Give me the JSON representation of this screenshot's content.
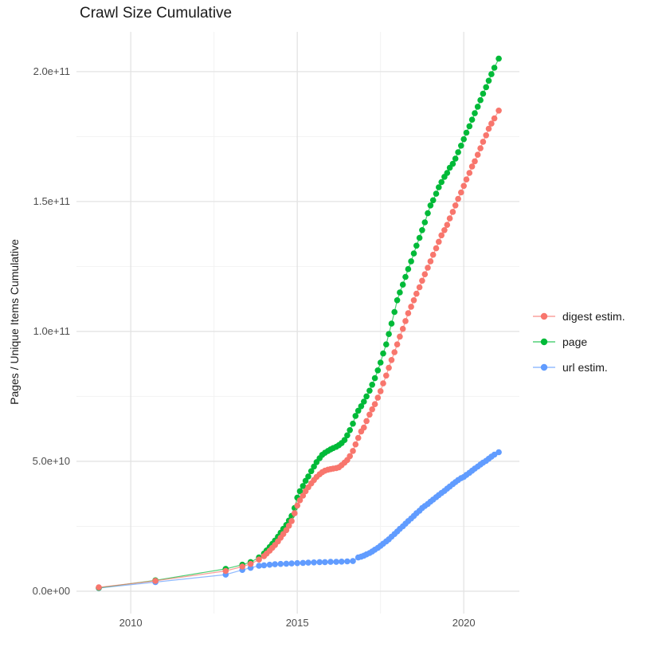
{
  "title": "Crawl Size Cumulative",
  "y_axis": {
    "label": "Pages / Unique Items Cumulative",
    "ticks": [
      "0.0e+00",
      "5.0e+10",
      "1.0e+11",
      "1.5e+11",
      "2.0e+11"
    ]
  },
  "x_axis": {
    "ticks": [
      "2010",
      "2015",
      "2020"
    ]
  },
  "legend": {
    "items": [
      {
        "label": "digest estim.",
        "color": "#F8766D"
      },
      {
        "label": "page",
        "color": "#00BA38"
      },
      {
        "label": "url estim.",
        "color": "#619CFF"
      }
    ]
  },
  "chart_data": {
    "type": "scatter",
    "title": "Crawl Size Cumulative",
    "xlabel": "",
    "ylabel": "Pages / Unique Items Cumulative",
    "note": "y values stored in billions (1e9); axis shows 0.0e+00 to 2.0e+11",
    "x_range": [
      2008.37,
      2021.67
    ],
    "y_range_e9": [
      -8.6,
      215.3
    ],
    "x_major_gridlines": [
      2010,
      2015,
      2020
    ],
    "x_minor_gridlines": [
      2012.5,
      2017.5
    ],
    "y_major_gridlines_e9": [
      0,
      50,
      100,
      150,
      200
    ],
    "y_minor_gridlines_e9": [
      25,
      75,
      125,
      175
    ],
    "y_tick_values_e9": [
      0,
      50,
      100,
      150,
      200
    ],
    "x_tick_values": [
      2010,
      2015,
      2020
    ],
    "legend_position": "right",
    "grid": true,
    "draw_order": [
      "url estim.",
      "page",
      "digest estim."
    ],
    "series": [
      {
        "name": "digest estim.",
        "color": "#F8766D",
        "points": [
          [
            2009.04,
            1.5
          ],
          [
            2010.74,
            4.0
          ],
          [
            2012.85,
            7.8
          ],
          [
            2013.35,
            9.5
          ],
          [
            2013.6,
            10.5
          ],
          [
            2013.85,
            12.2
          ],
          [
            2014.0,
            13.5
          ],
          [
            2014.08,
            14.5
          ],
          [
            2014.17,
            15.6
          ],
          [
            2014.25,
            16.7
          ],
          [
            2014.33,
            17.8
          ],
          [
            2014.42,
            19.2
          ],
          [
            2014.5,
            20.6
          ],
          [
            2014.58,
            22.0
          ],
          [
            2014.67,
            23.5
          ],
          [
            2014.75,
            25.2
          ],
          [
            2014.83,
            27.0
          ],
          [
            2014.92,
            30.0
          ],
          [
            2015.0,
            33.0
          ],
          [
            2015.08,
            35.0
          ],
          [
            2015.17,
            36.8
          ],
          [
            2015.25,
            38.5
          ],
          [
            2015.33,
            40.0
          ],
          [
            2015.42,
            41.5
          ],
          [
            2015.5,
            42.8
          ],
          [
            2015.58,
            44.0
          ],
          [
            2015.67,
            45.0
          ],
          [
            2015.75,
            45.8
          ],
          [
            2015.83,
            46.4
          ],
          [
            2015.92,
            46.8
          ],
          [
            2016.0,
            47.0
          ],
          [
            2016.08,
            47.2
          ],
          [
            2016.17,
            47.4
          ],
          [
            2016.25,
            47.7
          ],
          [
            2016.33,
            48.5
          ],
          [
            2016.42,
            49.5
          ],
          [
            2016.5,
            50.5
          ],
          [
            2016.58,
            52.0
          ],
          [
            2016.67,
            54.0
          ],
          [
            2016.75,
            56.5
          ],
          [
            2016.83,
            59.0
          ],
          [
            2016.92,
            61.5
          ],
          [
            2017.0,
            63.0
          ],
          [
            2017.08,
            65.5
          ],
          [
            2017.17,
            68.0
          ],
          [
            2017.25,
            70.0
          ],
          [
            2017.33,
            72.0
          ],
          [
            2017.42,
            74.5
          ],
          [
            2017.5,
            77.0
          ],
          [
            2017.58,
            80.0
          ],
          [
            2017.67,
            83.0
          ],
          [
            2017.75,
            86.0
          ],
          [
            2017.83,
            89.0
          ],
          [
            2017.92,
            92.0
          ],
          [
            2018.0,
            95.0
          ],
          [
            2018.08,
            98.0
          ],
          [
            2018.17,
            101.0
          ],
          [
            2018.25,
            104.0
          ],
          [
            2018.33,
            107.0
          ],
          [
            2018.42,
            109.5
          ],
          [
            2018.5,
            112.0
          ],
          [
            2018.58,
            114.5
          ],
          [
            2018.67,
            117.0
          ],
          [
            2018.75,
            119.5
          ],
          [
            2018.83,
            122.0
          ],
          [
            2018.92,
            124.5
          ],
          [
            2019.0,
            127.0
          ],
          [
            2019.08,
            129.5
          ],
          [
            2019.17,
            132.0
          ],
          [
            2019.25,
            134.5
          ],
          [
            2019.33,
            137.0
          ],
          [
            2019.42,
            139.0
          ],
          [
            2019.5,
            141.0
          ],
          [
            2019.58,
            143.5
          ],
          [
            2019.67,
            146.0
          ],
          [
            2019.75,
            148.5
          ],
          [
            2019.83,
            151.0
          ],
          [
            2019.92,
            153.5
          ],
          [
            2020.0,
            156.0
          ],
          [
            2020.08,
            158.5
          ],
          [
            2020.17,
            161.0
          ],
          [
            2020.25,
            163.5
          ],
          [
            2020.33,
            165.5
          ],
          [
            2020.42,
            168.0
          ],
          [
            2020.5,
            170.5
          ],
          [
            2020.58,
            173.0
          ],
          [
            2020.67,
            175.5
          ],
          [
            2020.75,
            178.0
          ],
          [
            2020.83,
            180.0
          ],
          [
            2020.92,
            182.0
          ],
          [
            2021.05,
            185.0
          ]
        ]
      },
      {
        "name": "page",
        "color": "#00BA38",
        "points": [
          [
            2009.04,
            1.3
          ],
          [
            2010.74,
            4.2
          ],
          [
            2012.85,
            8.6
          ],
          [
            2013.35,
            10.2
          ],
          [
            2013.6,
            11.2
          ],
          [
            2013.85,
            13.0
          ],
          [
            2014.0,
            14.5
          ],
          [
            2014.08,
            15.7
          ],
          [
            2014.17,
            17.0
          ],
          [
            2014.25,
            18.2
          ],
          [
            2014.33,
            19.5
          ],
          [
            2014.42,
            21.0
          ],
          [
            2014.5,
            22.5
          ],
          [
            2014.58,
            24.0
          ],
          [
            2014.67,
            25.5
          ],
          [
            2014.75,
            27.2
          ],
          [
            2014.83,
            29.0
          ],
          [
            2014.92,
            32.0
          ],
          [
            2015.0,
            36.0
          ],
          [
            2015.08,
            38.5
          ],
          [
            2015.17,
            40.5
          ],
          [
            2015.25,
            42.5
          ],
          [
            2015.33,
            44.2
          ],
          [
            2015.42,
            46.2
          ],
          [
            2015.5,
            48.0
          ],
          [
            2015.58,
            49.7
          ],
          [
            2015.67,
            51.2
          ],
          [
            2015.75,
            52.5
          ],
          [
            2015.83,
            53.3
          ],
          [
            2015.92,
            54.0
          ],
          [
            2016.0,
            54.6
          ],
          [
            2016.08,
            55.1
          ],
          [
            2016.17,
            55.6
          ],
          [
            2016.25,
            56.2
          ],
          [
            2016.33,
            57.0
          ],
          [
            2016.42,
            58.2
          ],
          [
            2016.5,
            60.0
          ],
          [
            2016.58,
            62.0
          ],
          [
            2016.67,
            64.5
          ],
          [
            2016.75,
            67.5
          ],
          [
            2016.83,
            69.5
          ],
          [
            2016.92,
            71.2
          ],
          [
            2017.0,
            73.0
          ],
          [
            2017.08,
            75.0
          ],
          [
            2017.17,
            77.2
          ],
          [
            2017.25,
            79.5
          ],
          [
            2017.33,
            82.0
          ],
          [
            2017.42,
            85.0
          ],
          [
            2017.5,
            88.0
          ],
          [
            2017.58,
            91.5
          ],
          [
            2017.67,
            95.0
          ],
          [
            2017.75,
            99.0
          ],
          [
            2017.83,
            103.0
          ],
          [
            2017.92,
            107.5
          ],
          [
            2018.0,
            112.0
          ],
          [
            2018.08,
            115.0
          ],
          [
            2018.17,
            118.0
          ],
          [
            2018.25,
            121.0
          ],
          [
            2018.33,
            124.0
          ],
          [
            2018.42,
            127.0
          ],
          [
            2018.5,
            130.0
          ],
          [
            2018.58,
            133.0
          ],
          [
            2018.67,
            136.0
          ],
          [
            2018.75,
            139.0
          ],
          [
            2018.83,
            142.0
          ],
          [
            2018.92,
            145.5
          ],
          [
            2019.0,
            148.5
          ],
          [
            2019.08,
            150.5
          ],
          [
            2019.17,
            153.0
          ],
          [
            2019.25,
            155.5
          ],
          [
            2019.33,
            157.5
          ],
          [
            2019.42,
            159.5
          ],
          [
            2019.5,
            161.0
          ],
          [
            2019.58,
            163.0
          ],
          [
            2019.67,
            164.5
          ],
          [
            2019.75,
            166.5
          ],
          [
            2019.83,
            169.0
          ],
          [
            2019.92,
            171.5
          ],
          [
            2020.0,
            174.0
          ],
          [
            2020.08,
            176.5
          ],
          [
            2020.17,
            179.0
          ],
          [
            2020.25,
            181.5
          ],
          [
            2020.33,
            184.0
          ],
          [
            2020.42,
            186.5
          ],
          [
            2020.5,
            189.0
          ],
          [
            2020.58,
            191.5
          ],
          [
            2020.67,
            194.0
          ],
          [
            2020.75,
            196.5
          ],
          [
            2020.83,
            199.0
          ],
          [
            2020.92,
            201.5
          ],
          [
            2021.05,
            205.0
          ]
        ]
      },
      {
        "name": "url estim.",
        "color": "#619CFF",
        "points": [
          [
            2009.04,
            1.2
          ],
          [
            2010.74,
            3.5
          ],
          [
            2012.85,
            6.4
          ],
          [
            2013.35,
            8.2
          ],
          [
            2013.6,
            9.0
          ],
          [
            2013.85,
            9.8
          ],
          [
            2014.0,
            10.0
          ],
          [
            2014.17,
            10.2
          ],
          [
            2014.33,
            10.4
          ],
          [
            2014.5,
            10.5
          ],
          [
            2014.67,
            10.6
          ],
          [
            2014.83,
            10.7
          ],
          [
            2015.0,
            10.8
          ],
          [
            2015.17,
            10.9
          ],
          [
            2015.33,
            11.0
          ],
          [
            2015.5,
            11.1
          ],
          [
            2015.67,
            11.2
          ],
          [
            2015.83,
            11.2
          ],
          [
            2016.0,
            11.3
          ],
          [
            2016.17,
            11.3
          ],
          [
            2016.33,
            11.4
          ],
          [
            2016.5,
            11.5
          ],
          [
            2016.67,
            11.6
          ],
          [
            2016.83,
            13.0
          ],
          [
            2016.92,
            13.3
          ],
          [
            2017.0,
            13.7
          ],
          [
            2017.08,
            14.2
          ],
          [
            2017.17,
            14.7
          ],
          [
            2017.25,
            15.3
          ],
          [
            2017.33,
            16.0
          ],
          [
            2017.42,
            16.7
          ],
          [
            2017.5,
            17.5
          ],
          [
            2017.58,
            18.3
          ],
          [
            2017.67,
            19.2
          ],
          [
            2017.75,
            20.0
          ],
          [
            2017.83,
            21.0
          ],
          [
            2017.92,
            22.0
          ],
          [
            2018.0,
            23.0
          ],
          [
            2018.08,
            24.0
          ],
          [
            2018.17,
            25.0
          ],
          [
            2018.25,
            26.0
          ],
          [
            2018.33,
            27.0
          ],
          [
            2018.42,
            28.0
          ],
          [
            2018.5,
            29.0
          ],
          [
            2018.58,
            30.0
          ],
          [
            2018.67,
            31.0
          ],
          [
            2018.75,
            32.0
          ],
          [
            2018.83,
            32.8
          ],
          [
            2018.92,
            33.6
          ],
          [
            2019.0,
            34.5
          ],
          [
            2019.08,
            35.3
          ],
          [
            2019.17,
            36.2
          ],
          [
            2019.25,
            37.0
          ],
          [
            2019.33,
            37.8
          ],
          [
            2019.42,
            38.6
          ],
          [
            2019.5,
            39.5
          ],
          [
            2019.58,
            40.3
          ],
          [
            2019.67,
            41.2
          ],
          [
            2019.75,
            42.0
          ],
          [
            2019.83,
            42.8
          ],
          [
            2019.92,
            43.5
          ],
          [
            2020.0,
            44.0
          ],
          [
            2020.08,
            44.8
          ],
          [
            2020.17,
            45.6
          ],
          [
            2020.25,
            46.4
          ],
          [
            2020.33,
            47.2
          ],
          [
            2020.42,
            48.0
          ],
          [
            2020.5,
            48.8
          ],
          [
            2020.58,
            49.5
          ],
          [
            2020.67,
            50.2
          ],
          [
            2020.75,
            51.0
          ],
          [
            2020.83,
            51.8
          ],
          [
            2020.92,
            52.6
          ],
          [
            2021.05,
            53.5
          ]
        ]
      }
    ],
    "colors": {
      "grid_major": "#e3e3e3",
      "grid_minor": "#f2f2f2",
      "background": "#ffffff",
      "tick_text": "#4d4d4d"
    }
  }
}
